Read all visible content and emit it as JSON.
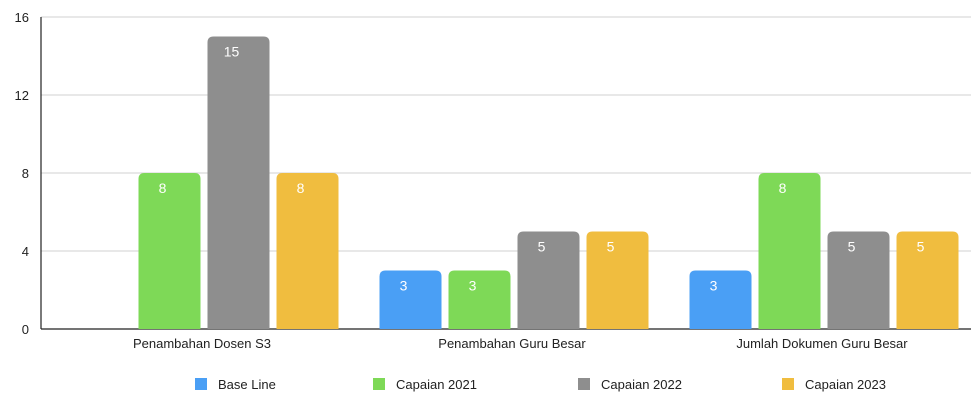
{
  "chart_data": {
    "type": "bar",
    "categories": [
      "Penambahan Dosen S3",
      "Penambahan Guru Besar",
      "Jumlah Dokumen Guru Besar"
    ],
    "series": [
      {
        "name": "Base Line",
        "values": [
          null,
          3,
          3
        ],
        "color": "#4a9ff5"
      },
      {
        "name": "Capaian 2021",
        "values": [
          8,
          3,
          8
        ],
        "color": "#7ed957"
      },
      {
        "name": "Capaian 2022",
        "values": [
          15,
          5,
          5
        ],
        "color": "#8e8e8e"
      },
      {
        "name": "Capaian 2023",
        "values": [
          8,
          5,
          5
        ],
        "color": "#f0bd3f"
      }
    ],
    "yticks": [
      0,
      4,
      8,
      12,
      16
    ],
    "ylim": [
      0,
      16
    ],
    "grid": true,
    "legend_position": "bottom",
    "data_labels": true
  }
}
